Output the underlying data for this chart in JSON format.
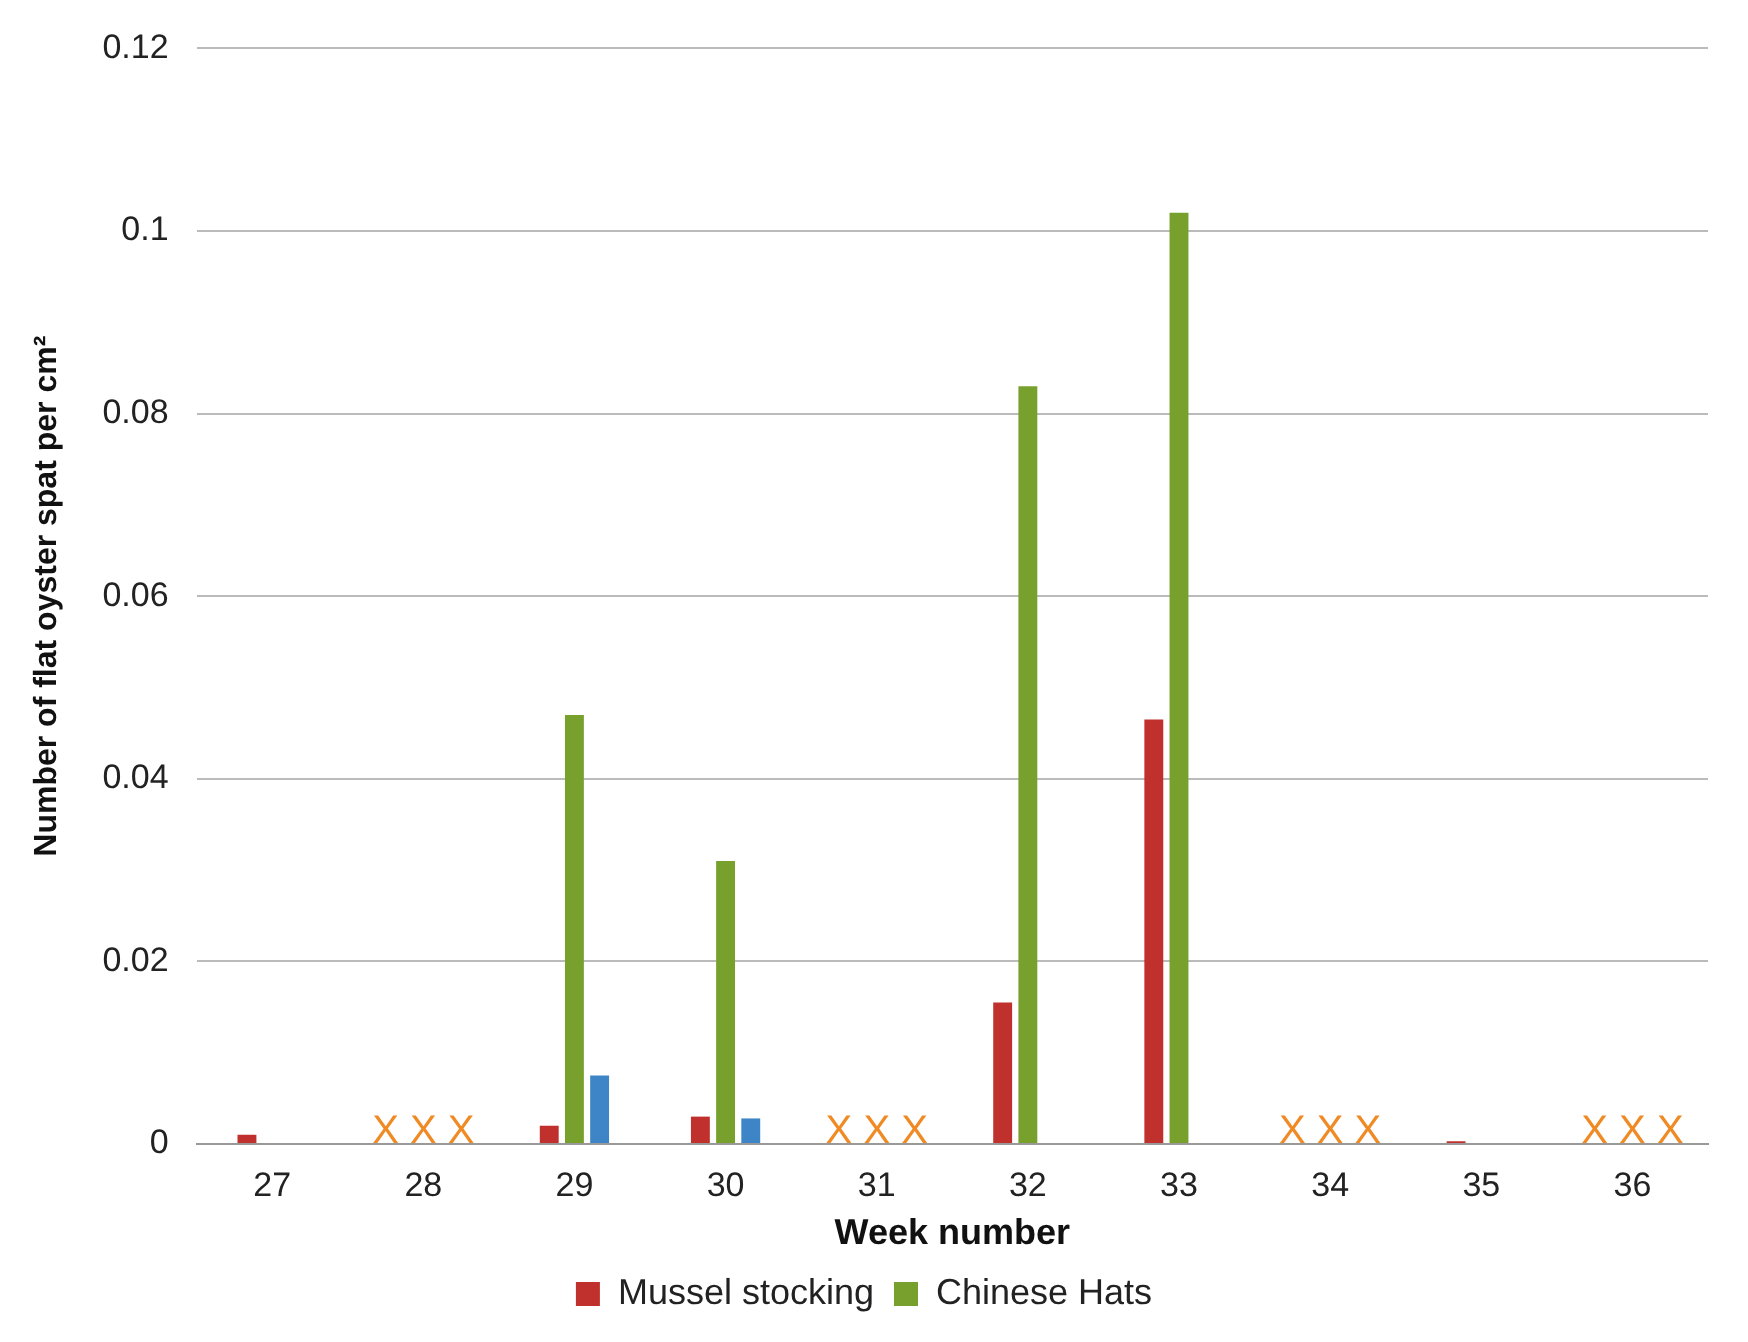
{
  "chart_data": {
    "type": "bar",
    "xlabel": "Week number",
    "ylabel": "Number of flat oyster spat per cm²",
    "categories": [
      "27",
      "28",
      "29",
      "30",
      "31",
      "32",
      "33",
      "34",
      "35",
      "36"
    ],
    "series": [
      {
        "name": "Mussel stocking",
        "color": "#c0302c",
        "values": [
          0.001,
          null,
          0.002,
          0.003,
          null,
          0.0155,
          0.0465,
          null,
          0.0003,
          null
        ]
      },
      {
        "name": "Chinese Hats",
        "color": "#77a02c",
        "values": [
          0,
          null,
          0.047,
          0.031,
          null,
          0.083,
          0.102,
          null,
          0,
          null
        ]
      },
      {
        "color": "#3d85c6",
        "values": [
          0,
          null,
          0.0075,
          0.0028,
          null,
          0,
          0,
          null,
          0,
          null
        ]
      }
    ],
    "ylim": [
      0,
      0.12
    ],
    "yticks": [
      0,
      0.02,
      0.04,
      0.06,
      0.08,
      0.1,
      0.12
    ],
    "grid": "y",
    "legend": "bottom",
    "annotations": [
      "X X X",
      "X X X",
      "X X X",
      "X X X"
    ]
  }
}
